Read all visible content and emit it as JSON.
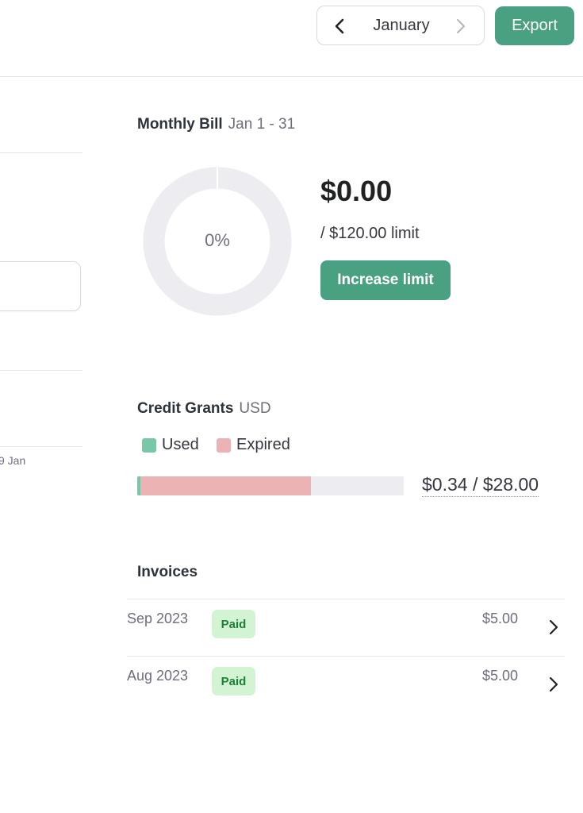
{
  "header": {
    "month_label": "January",
    "export_label": "Export"
  },
  "left_panel": {
    "axis_tick": "9 Jan"
  },
  "monthly_bill": {
    "title": "Monthly Bill",
    "range": "Jan 1 - 31",
    "percent_label": "0%",
    "percent_used": 0,
    "amount": "$0.00",
    "limit_text": "/ $120.00 limit",
    "increase_label": "Increase limit"
  },
  "credit_grants": {
    "title": "Credit Grants",
    "currency": "USD",
    "legend_used": "Used",
    "legend_expired": "Expired",
    "used_fraction": 0.012,
    "expired_fraction": 0.64,
    "total_text": "$0.34 / $28.00"
  },
  "invoices": {
    "title": "Invoices",
    "rows": [
      {
        "date": "Sep 2023",
        "status": "Paid",
        "amount": "$5.00"
      },
      {
        "date": "Aug 2023",
        "status": "Paid",
        "amount": "$5.00"
      }
    ]
  },
  "colors": {
    "accent": "#4aa182",
    "used": "#7ac7a8",
    "expired": "#ebb3b3",
    "paid_bg": "#d2f4d3",
    "paid_text": "#1a7f37"
  },
  "icons": {
    "prev": "chevron-left-icon",
    "next": "chevron-right-icon",
    "row": "chevron-right-icon"
  }
}
